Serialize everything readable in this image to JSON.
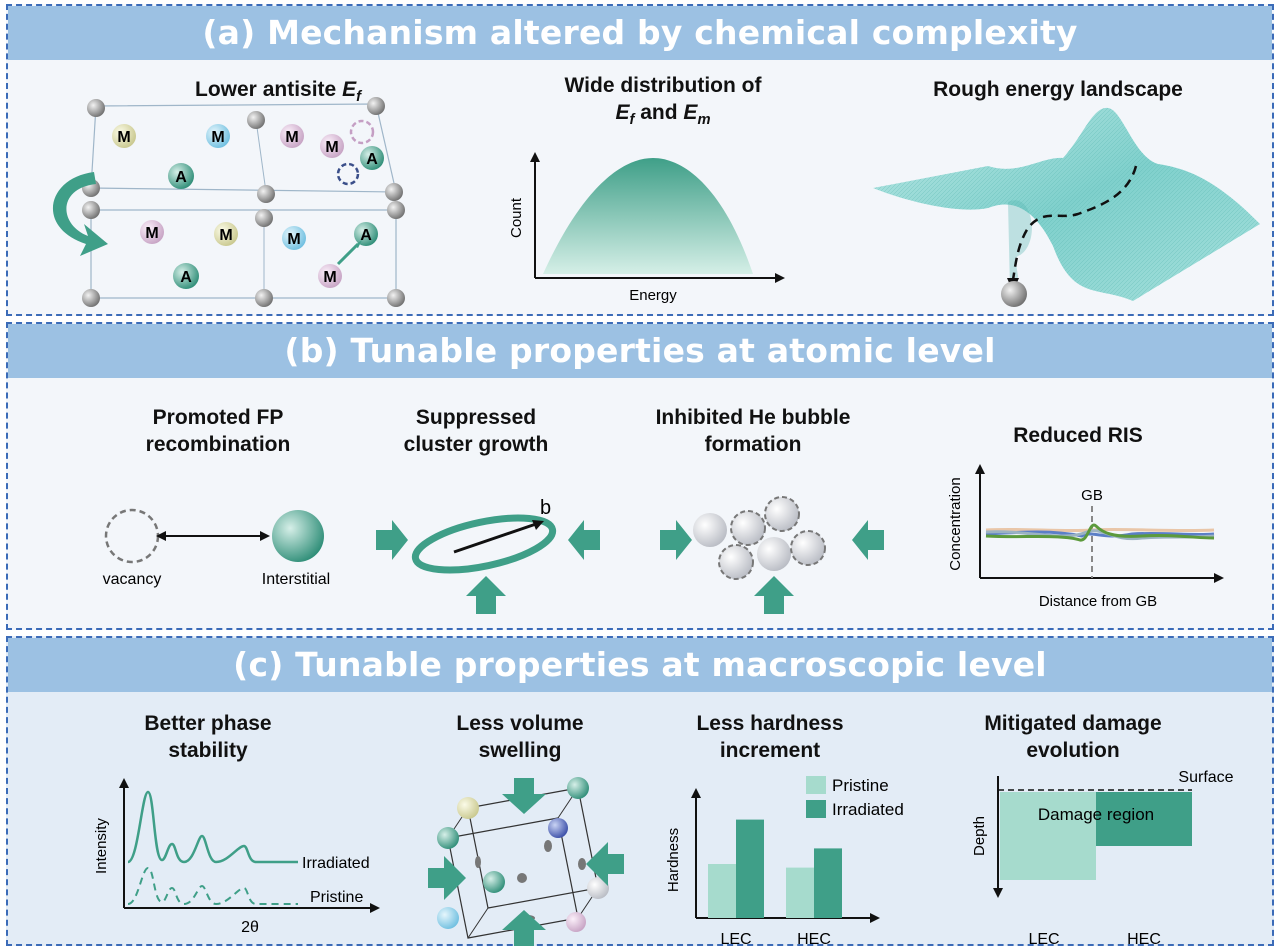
{
  "panel_a": {
    "title": "(a) Mechanism altered by chemical complexity",
    "col1_title": "Lower antisite",
    "col1_title_var": "E",
    "col1_title_sub": "f",
    "col2_title_line1": "Wide distribution of",
    "col2_title_e1": "E",
    "col2_title_s1": "f",
    "col2_title_and": " and ",
    "col2_title_e2": "E",
    "col2_title_s2": "m",
    "col2_ylabel": "Count",
    "col2_xlabel": "Energy",
    "col3_title": "Rough energy landscape",
    "atom_m": "M",
    "atom_a": "A"
  },
  "panel_b": {
    "title": "(b) Tunable properties at atomic level",
    "item1_title": [
      "Promoted FP",
      "recombination"
    ],
    "item1_vacancy": "vacancy",
    "item1_interstitial": "Interstitial",
    "item2_title": [
      "Suppressed",
      "cluster growth"
    ],
    "item2_vector": "b",
    "item3_title": [
      "Inhibited He bubble",
      "formation"
    ],
    "item4_title": "Reduced RIS",
    "item4_ylabel": "Concentration",
    "item4_xlabel": "Distance from GB",
    "item4_marker": "GB"
  },
  "panel_c": {
    "title": "(c) Tunable properties at macroscopic level",
    "item1_title": [
      "Better phase",
      "stability"
    ],
    "item1_ylabel": "Intensity",
    "item1_xlabel": "2θ",
    "item1_series": [
      "Irradiated",
      "Pristine"
    ],
    "item2_title": [
      "Less volume",
      "swelling"
    ],
    "item3_title": [
      "Less hardness",
      "increment"
    ],
    "item3_ylabel": "Hardness",
    "item3_legend": [
      "Pristine",
      "Irradiated"
    ],
    "item3_categories": [
      "LEC",
      "HEC"
    ],
    "item4_title": [
      "Mitigated damage",
      "evolution"
    ],
    "item4_surface": "Surface",
    "item4_region": "Damage region",
    "item4_ylabel": "Depth",
    "item4_categories": [
      "LEC",
      "HEC"
    ]
  },
  "colors": {
    "banner": "#9cc1e3",
    "teal": "#3f9f88",
    "teal_light": "#a6dbcd",
    "border": "#3b6bb8"
  },
  "chart_data": [
    {
      "type": "bar",
      "title": "Less hardness increment",
      "ylabel": "Hardness",
      "categories": [
        "LEC",
        "HEC"
      ],
      "series": [
        {
          "name": "Pristine",
          "values": [
            0.45,
            0.42
          ]
        },
        {
          "name": "Irradiated",
          "values": [
            0.82,
            0.58
          ]
        }
      ]
    }
  ]
}
